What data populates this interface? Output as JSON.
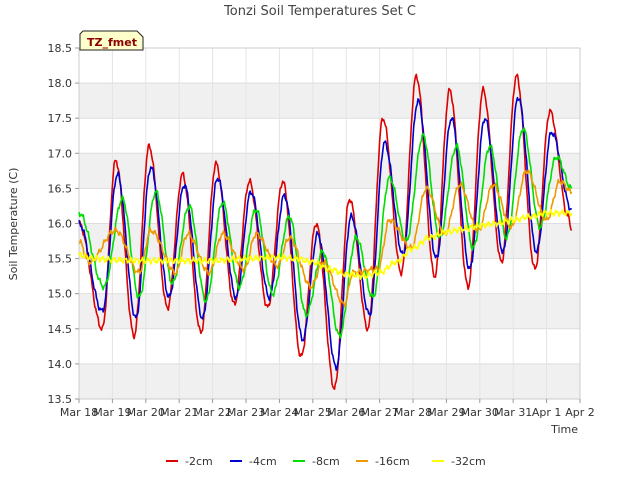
{
  "chart_data": {
    "type": "line",
    "title": "Tonzi Soil Temperatures Set C",
    "xlabel": "Time",
    "ylabel": "Soil Temperature (C)",
    "badge": "TZ_fmet",
    "x_ticks": [
      "Mar 18",
      "Mar 19",
      "Mar 20",
      "Mar 21",
      "Mar 22",
      "Mar 23",
      "Mar 24",
      "Mar 25",
      "Mar 26",
      "Mar 27",
      "Mar 28",
      "Mar 29",
      "Mar 30",
      "Mar 31",
      "Apr 1",
      "Apr 2"
    ],
    "xlim": [
      0,
      15
    ],
    "ylim": [
      13.5,
      18.5
    ],
    "y_ticks": [
      "13.5",
      "14.0",
      "14.5",
      "15.0",
      "15.5",
      "16.0",
      "16.5",
      "17.0",
      "17.5",
      "18.0",
      "18.5"
    ],
    "grid": true,
    "legend_position": "bottom",
    "x_unit_note": "days since Mar 18",
    "series": [
      {
        "name": "-2cm",
        "color": "#dd0000",
        "x": [
          0.0,
          0.7,
          1.1,
          1.65,
          2.1,
          2.65,
          3.1,
          3.65,
          4.1,
          4.65,
          5.1,
          5.65,
          6.1,
          6.65,
          7.1,
          7.65,
          8.1,
          8.65,
          9.1,
          9.65,
          10.1,
          10.65,
          11.1,
          11.65,
          12.1,
          12.65,
          13.1,
          13.65,
          14.1,
          14.65,
          14.75
        ],
        "values": [
          16.0,
          14.5,
          16.9,
          14.4,
          17.1,
          14.8,
          16.7,
          14.45,
          16.85,
          14.85,
          16.6,
          14.8,
          16.6,
          14.1,
          16.0,
          13.65,
          16.35,
          14.5,
          17.5,
          15.3,
          18.1,
          15.25,
          17.9,
          15.1,
          17.9,
          15.45,
          18.1,
          15.35,
          17.6,
          16.1,
          15.9
        ]
      },
      {
        "name": "-4cm",
        "color": "#0000cc",
        "x": [
          0.0,
          0.7,
          1.15,
          1.7,
          2.15,
          2.7,
          3.15,
          3.7,
          4.15,
          4.7,
          5.15,
          5.7,
          6.15,
          6.7,
          7.15,
          7.7,
          8.15,
          8.7,
          9.15,
          9.7,
          10.15,
          10.7,
          11.15,
          11.7,
          12.15,
          12.7,
          13.15,
          13.7,
          14.15,
          14.75
        ],
        "values": [
          16.0,
          14.75,
          16.7,
          14.65,
          16.8,
          14.95,
          16.55,
          14.65,
          16.65,
          14.95,
          16.45,
          14.95,
          16.4,
          14.35,
          15.85,
          13.95,
          16.1,
          14.7,
          17.15,
          15.55,
          17.75,
          15.5,
          17.5,
          15.35,
          17.5,
          15.6,
          17.8,
          15.6,
          17.3,
          16.2
        ]
      },
      {
        "name": "-8cm",
        "color": "#00dd00",
        "x": [
          0.0,
          0.75,
          1.3,
          1.8,
          2.3,
          2.8,
          3.3,
          3.8,
          4.3,
          4.8,
          5.3,
          5.8,
          6.3,
          6.8,
          7.3,
          7.8,
          8.3,
          8.8,
          9.3,
          9.8,
          10.3,
          10.8,
          11.3,
          11.8,
          12.3,
          12.8,
          13.3,
          13.8,
          14.3,
          14.75
        ],
        "values": [
          16.15,
          15.1,
          16.35,
          14.95,
          16.45,
          15.15,
          16.25,
          14.9,
          16.3,
          15.1,
          16.2,
          15.0,
          16.1,
          14.7,
          15.6,
          14.4,
          15.8,
          14.95,
          16.65,
          15.75,
          17.25,
          15.8,
          17.1,
          15.65,
          17.1,
          15.8,
          17.35,
          15.95,
          16.95,
          16.5
        ]
      },
      {
        "name": "-16cm",
        "color": "#ee9900",
        "x": [
          0.0,
          0.3,
          1.1,
          1.8,
          2.15,
          2.9,
          3.25,
          3.9,
          4.3,
          4.95,
          5.3,
          5.95,
          6.3,
          6.95,
          7.3,
          7.95,
          8.2,
          8.95,
          9.3,
          9.95,
          10.4,
          10.95,
          11.4,
          11.95,
          12.4,
          12.95,
          13.4,
          14.0,
          14.4,
          14.75
        ],
        "values": [
          15.75,
          15.45,
          15.9,
          15.3,
          15.9,
          15.3,
          15.85,
          15.3,
          15.85,
          15.35,
          15.85,
          15.4,
          15.8,
          15.1,
          15.45,
          14.85,
          15.3,
          15.35,
          16.05,
          15.65,
          16.5,
          15.85,
          16.55,
          15.9,
          16.55,
          15.95,
          16.75,
          16.05,
          16.6,
          16.45
        ]
      },
      {
        "name": "-32cm",
        "color": "#ffff00",
        "x": [
          0.0,
          0.5,
          1.0,
          2.0,
          3.0,
          4.0,
          5.0,
          6.0,
          6.5,
          7.0,
          7.5,
          8.0,
          8.5,
          9.0,
          9.5,
          10.0,
          10.5,
          11.0,
          11.5,
          12.0,
          12.5,
          13.0,
          13.5,
          14.0,
          14.5,
          14.75
        ],
        "values": [
          15.55,
          15.5,
          15.48,
          15.47,
          15.47,
          15.47,
          15.5,
          15.52,
          15.5,
          15.45,
          15.35,
          15.28,
          15.25,
          15.3,
          15.45,
          15.65,
          15.8,
          15.88,
          15.92,
          15.97,
          16.0,
          16.05,
          16.1,
          16.15,
          16.15,
          16.15
        ]
      }
    ]
  }
}
